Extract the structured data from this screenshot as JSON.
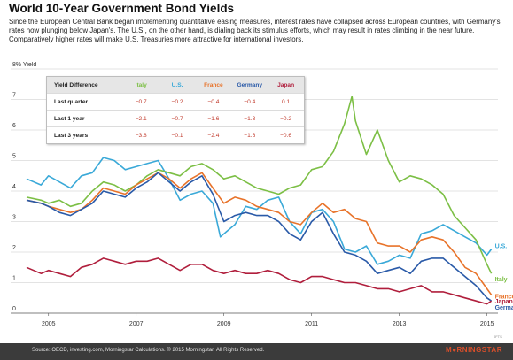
{
  "title": "World 10-Year Government Bond Yields",
  "subtitle": "Since the European Central Bank began implementing quantitative easing measures, interest rates have collapsed across European countries, with Germany's rates now plunging below Japan's. The U.S., on the other hand, is dialing back its stimulus efforts, which may result in rates climbing in the near future. Comparatively higher rates will make U.S. Treasuries more attractive for international investors.",
  "table": {
    "header": [
      "Yield Difference",
      "Italy",
      "U.S.",
      "France",
      "Germany",
      "Japan"
    ],
    "header_colors": [
      "#222222",
      "#7cbf45",
      "#3aa9d8",
      "#e8732a",
      "#2a5aa8",
      "#b01e3c"
    ],
    "rows": [
      {
        "label": "Last quarter",
        "values": [
          "−0.7",
          "−0.2",
          "−0.4",
          "−0.4",
          "0.1"
        ]
      },
      {
        "label": "Last 1 year",
        "values": [
          "−2.1",
          "−0.7",
          "−1.6",
          "−1.3",
          "−0.2"
        ]
      },
      {
        "label": "Last 3 years",
        "values": [
          "−3.8",
          "−0.1",
          "−2.4",
          "−1.6",
          "−0.6"
        ]
      }
    ]
  },
  "footer": {
    "source": "Source: OECD, investing.com, Morningstar Calculations. © 2015 Morningstar. All Rights Reserved.",
    "logo": "M●RNINGSTAR",
    "code": "0FTS"
  },
  "colors": {
    "italy": "#7cbf45",
    "us": "#3aa9d8",
    "france": "#e8732a",
    "germany": "#2a5aa8",
    "japan": "#b01e3c",
    "grid": "#c8c8c8",
    "background": "#ffffff"
  },
  "chart_data": {
    "type": "line",
    "title": "",
    "xlabel": "",
    "ylabel": "8% Yield",
    "xlim": [
      2004.5,
      2015.25
    ],
    "ylim": [
      0,
      8
    ],
    "x_ticks": [
      "2005",
      "2007",
      "2009",
      "2011",
      "2013",
      "2015"
    ],
    "x_tick_values": [
      2005,
      2007,
      2009,
      2011,
      2013,
      2015
    ],
    "y_ticks": [
      "0",
      "1",
      "2",
      "3",
      "4",
      "5",
      "6",
      "7",
      "8% Yield"
    ],
    "y_tick_values": [
      0,
      1,
      2,
      3,
      4,
      5,
      6,
      7,
      8
    ],
    "grid": true,
    "legend_placement": "right end labels",
    "series": [
      {
        "name": "U.S.",
        "color": "#3aa9d8",
        "x": [
          2004.5,
          2004.83,
          2005.0,
          2005.25,
          2005.5,
          2005.75,
          2006.0,
          2006.25,
          2006.5,
          2006.75,
          2007.0,
          2007.25,
          2007.5,
          2007.75,
          2008.0,
          2008.25,
          2008.5,
          2008.75,
          2008.92,
          2009.0,
          2009.25,
          2009.5,
          2009.75,
          2010.0,
          2010.25,
          2010.5,
          2010.75,
          2011.0,
          2011.25,
          2011.5,
          2011.75,
          2012.0,
          2012.25,
          2012.5,
          2012.75,
          2013.0,
          2013.25,
          2013.5,
          2013.75,
          2014.0,
          2014.25,
          2014.5,
          2014.75,
          2015.0,
          2015.1
        ],
        "y": [
          4.4,
          4.2,
          4.5,
          4.3,
          4.1,
          4.5,
          4.6,
          5.1,
          5.0,
          4.7,
          4.8,
          4.9,
          5.0,
          4.4,
          3.7,
          3.9,
          4.0,
          3.6,
          2.5,
          2.6,
          2.9,
          3.5,
          3.4,
          3.7,
          3.8,
          3.0,
          2.6,
          3.3,
          3.4,
          3.0,
          2.1,
          2.0,
          2.2,
          1.6,
          1.7,
          1.9,
          1.8,
          2.6,
          2.7,
          2.9,
          2.7,
          2.5,
          2.3,
          1.9,
          2.1
        ]
      },
      {
        "name": "Italy",
        "color": "#7cbf45",
        "x": [
          2004.5,
          2004.83,
          2005.0,
          2005.25,
          2005.5,
          2005.75,
          2006.0,
          2006.25,
          2006.5,
          2006.75,
          2007.0,
          2007.25,
          2007.5,
          2007.75,
          2008.0,
          2008.25,
          2008.5,
          2008.75,
          2009.0,
          2009.25,
          2009.5,
          2009.75,
          2010.0,
          2010.25,
          2010.5,
          2010.75,
          2011.0,
          2011.25,
          2011.5,
          2011.75,
          2011.92,
          2012.0,
          2012.25,
          2012.5,
          2012.75,
          2013.0,
          2013.25,
          2013.5,
          2013.75,
          2014.0,
          2014.25,
          2014.5,
          2014.75,
          2015.0,
          2015.1
        ],
        "y": [
          3.8,
          3.7,
          3.6,
          3.7,
          3.5,
          3.6,
          4.0,
          4.3,
          4.2,
          4.0,
          4.2,
          4.5,
          4.7,
          4.6,
          4.5,
          4.8,
          4.9,
          4.7,
          4.4,
          4.5,
          4.3,
          4.1,
          4.0,
          3.9,
          4.1,
          4.2,
          4.7,
          4.8,
          5.3,
          6.2,
          7.1,
          6.3,
          5.2,
          6.0,
          5.0,
          4.3,
          4.5,
          4.4,
          4.2,
          3.9,
          3.2,
          2.8,
          2.4,
          1.6,
          1.3
        ]
      },
      {
        "name": "France",
        "color": "#e8732a",
        "x": [
          2004.5,
          2004.83,
          2005.0,
          2005.25,
          2005.5,
          2005.75,
          2006.0,
          2006.25,
          2006.5,
          2006.75,
          2007.0,
          2007.25,
          2007.5,
          2007.75,
          2008.0,
          2008.25,
          2008.5,
          2008.75,
          2009.0,
          2009.25,
          2009.5,
          2009.75,
          2010.0,
          2010.25,
          2010.5,
          2010.75,
          2011.0,
          2011.25,
          2011.5,
          2011.75,
          2012.0,
          2012.25,
          2012.5,
          2012.75,
          2013.0,
          2013.25,
          2013.5,
          2013.75,
          2014.0,
          2014.25,
          2014.5,
          2014.75,
          2015.0,
          2015.1
        ],
        "y": [
          3.7,
          3.6,
          3.5,
          3.4,
          3.3,
          3.4,
          3.7,
          4.1,
          4.0,
          3.9,
          4.2,
          4.4,
          4.6,
          4.4,
          4.1,
          4.4,
          4.6,
          4.1,
          3.6,
          3.8,
          3.7,
          3.5,
          3.4,
          3.3,
          3.0,
          2.9,
          3.3,
          3.6,
          3.3,
          3.4,
          3.1,
          3.0,
          2.3,
          2.2,
          2.2,
          2.0,
          2.4,
          2.5,
          2.4,
          2.0,
          1.5,
          1.3,
          0.8,
          0.6
        ]
      },
      {
        "name": "Germany",
        "color": "#2a5aa8",
        "x": [
          2004.5,
          2004.83,
          2005.0,
          2005.25,
          2005.5,
          2005.75,
          2006.0,
          2006.25,
          2006.5,
          2006.75,
          2007.0,
          2007.25,
          2007.5,
          2007.75,
          2008.0,
          2008.25,
          2008.5,
          2008.75,
          2009.0,
          2009.25,
          2009.5,
          2009.75,
          2010.0,
          2010.25,
          2010.5,
          2010.75,
          2011.0,
          2011.25,
          2011.5,
          2011.75,
          2012.0,
          2012.25,
          2012.5,
          2012.75,
          2013.0,
          2013.25,
          2013.5,
          2013.75,
          2014.0,
          2014.25,
          2014.5,
          2014.75,
          2015.0,
          2015.1
        ],
        "y": [
          3.7,
          3.6,
          3.5,
          3.3,
          3.2,
          3.4,
          3.6,
          4.0,
          3.9,
          3.8,
          4.1,
          4.3,
          4.6,
          4.3,
          4.0,
          4.3,
          4.5,
          3.9,
          3.0,
          3.2,
          3.3,
          3.2,
          3.2,
          3.0,
          2.6,
          2.4,
          3.0,
          3.3,
          2.6,
          2.0,
          1.9,
          1.7,
          1.3,
          1.4,
          1.5,
          1.3,
          1.7,
          1.8,
          1.8,
          1.5,
          1.2,
          0.9,
          0.5,
          0.4
        ]
      },
      {
        "name": "Japan",
        "color": "#b01e3c",
        "x": [
          2004.5,
          2004.83,
          2005.0,
          2005.25,
          2005.5,
          2005.75,
          2006.0,
          2006.25,
          2006.5,
          2006.75,
          2007.0,
          2007.25,
          2007.5,
          2007.75,
          2008.0,
          2008.25,
          2008.5,
          2008.75,
          2009.0,
          2009.25,
          2009.5,
          2009.75,
          2010.0,
          2010.25,
          2010.5,
          2010.75,
          2011.0,
          2011.25,
          2011.5,
          2011.75,
          2012.0,
          2012.25,
          2012.5,
          2012.75,
          2013.0,
          2013.25,
          2013.5,
          2013.75,
          2014.0,
          2014.25,
          2014.5,
          2014.75,
          2015.0,
          2015.1
        ],
        "y": [
          1.5,
          1.3,
          1.4,
          1.3,
          1.2,
          1.5,
          1.6,
          1.8,
          1.7,
          1.6,
          1.7,
          1.7,
          1.8,
          1.6,
          1.4,
          1.6,
          1.6,
          1.4,
          1.3,
          1.4,
          1.3,
          1.3,
          1.4,
          1.3,
          1.1,
          1.0,
          1.2,
          1.2,
          1.1,
          1.0,
          1.0,
          0.9,
          0.8,
          0.8,
          0.7,
          0.8,
          0.9,
          0.7,
          0.7,
          0.6,
          0.5,
          0.4,
          0.3,
          0.4
        ]
      }
    ]
  }
}
